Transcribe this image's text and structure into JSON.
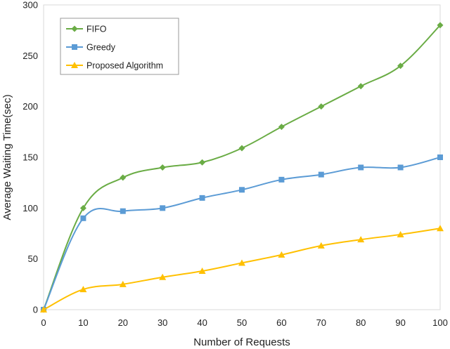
{
  "chart_data": {
    "type": "line",
    "title": "",
    "xlabel": "Number of Requests",
    "ylabel": "Average Waiting Time(sec)",
    "x": [
      0,
      10,
      20,
      30,
      40,
      50,
      60,
      70,
      80,
      90,
      100
    ],
    "xlim": [
      0,
      100
    ],
    "ylim": [
      0,
      300
    ],
    "xticks": [
      0,
      10,
      20,
      30,
      40,
      50,
      60,
      70,
      80,
      90,
      100
    ],
    "yticks": [
      0,
      50,
      100,
      150,
      200,
      250,
      300
    ],
    "grid": false,
    "legend_position": "top-left",
    "smooth": true,
    "series": [
      {
        "name": "FIFO",
        "color": "#6aac45",
        "marker": "diamond",
        "values": [
          0,
          100,
          130,
          140,
          145,
          159,
          180,
          200,
          220,
          240,
          280
        ]
      },
      {
        "name": "Greedy",
        "color": "#5b9bd5",
        "marker": "square",
        "values": [
          0,
          90,
          97,
          100,
          110,
          118,
          128,
          133,
          140,
          140,
          150
        ]
      },
      {
        "name": "Proposed Algorithm",
        "color": "#ffc000",
        "marker": "triangle",
        "values": [
          0,
          20,
          25,
          32,
          38,
          46,
          54,
          63,
          69,
          74,
          80
        ]
      }
    ]
  }
}
